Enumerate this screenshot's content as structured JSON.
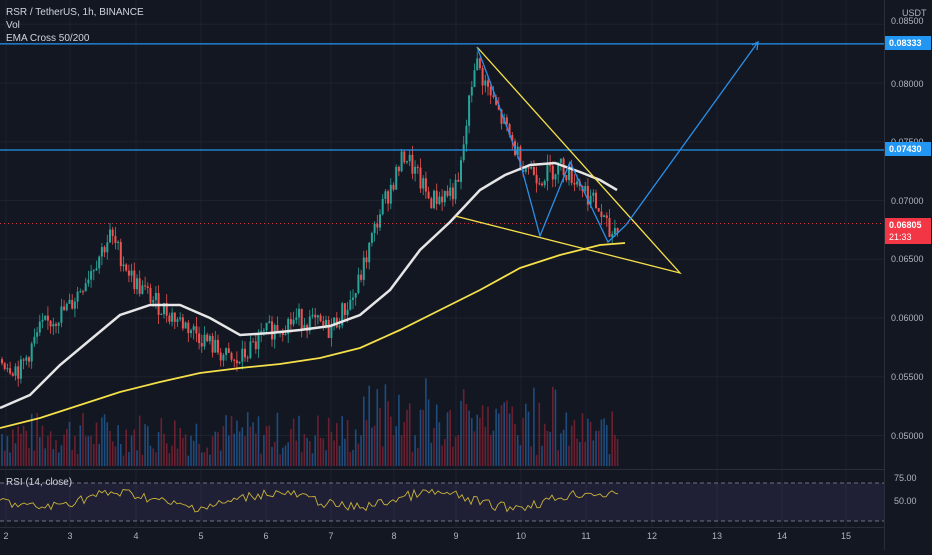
{
  "legend": {
    "symbol": "RSR / TetherUS, 1h, BINANCE",
    "vol": "Vol",
    "ema": "EMA Cross 50/200"
  },
  "axis": {
    "unit": "USDT",
    "price_ticks": [
      "0.08500",
      "0.08000",
      "0.07500",
      "0.07000",
      "0.06500",
      "0.06000",
      "0.05500",
      "0.05000"
    ],
    "time_ticks": [
      "2",
      "3",
      "4",
      "5",
      "6",
      "7",
      "8",
      "9",
      "10",
      "11",
      "12",
      "13",
      "14",
      "15"
    ]
  },
  "price_tags": [
    {
      "value": "0.08333",
      "color": "#2196f3"
    },
    {
      "value": "0.07430",
      "color": "#2196f3"
    },
    {
      "value": "0.06805",
      "color": "#f23645"
    },
    {
      "value": "21:33",
      "color": "#f23645"
    }
  ],
  "rsi": {
    "label": "RSI (14, close)",
    "ticks": [
      "75.00",
      "50.00"
    ]
  },
  "colors": {
    "bg": "#131722",
    "up": "#26a69a",
    "down": "#ef5350",
    "ema50": "#e6e6e6",
    "ema200": "#f5e04a",
    "hline": "#2196f3",
    "triangle": "#f5e04a",
    "rsi": "#c9b33a"
  },
  "chart_data": {
    "type": "candlestick",
    "price_range": [
      0.0485,
      0.086
    ],
    "horizontal_levels": [
      0.08333,
      0.0743
    ],
    "last_price": 0.06805
  }
}
